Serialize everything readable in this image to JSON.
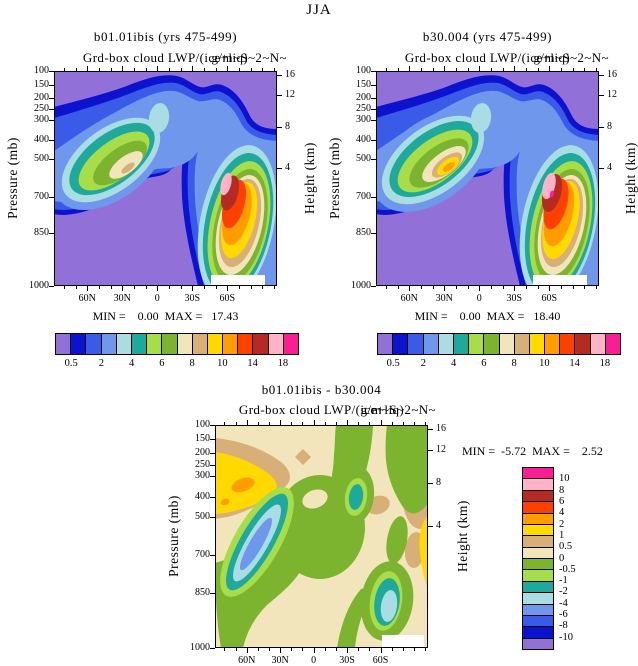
{
  "figure_title": "JJA",
  "panels": [
    {
      "title": "b01.01ibis (yrs 475-499)",
      "center_string": "Grd-box cloud LWP/(ice+liq)",
      "right_string": "g/m~S~2~N~",
      "minmax": "MIN =    0.00  MAX =   17.43"
    },
    {
      "title": "b30.004 (yrs 475-499)",
      "center_string": "Grd-box cloud LWP/(ice+liq)",
      "right_string": "g/m~S~2~N~",
      "minmax": "MIN =    0.00  MAX =   18.40"
    },
    {
      "title": "b01.01ibis - b30.004",
      "center_string": "Grd-box cloud LWP/(ice+liq)",
      "right_string": "g/m~S~2~N~",
      "minmax": "MIN =  -5.72  MAX =    2.52"
    }
  ],
  "axes": {
    "pressure_label": "Pressure (mb)",
    "height_label": "Height (km)",
    "pressure_ticks": [
      "100",
      "150",
      "200",
      "250",
      "300",
      "400",
      "500",
      "700",
      "850",
      "1000"
    ],
    "height_ticks": [
      "16",
      "12",
      "8",
      "4"
    ],
    "lat_ticks": [
      "60N",
      "30N",
      "0",
      "30S",
      "60S"
    ]
  },
  "colorbars": {
    "top_labels": [
      "0.5",
      "2",
      "4",
      "6",
      "8",
      "10",
      "14",
      "18"
    ],
    "diff_labels": [
      "10",
      "8",
      "6",
      "4",
      "2",
      "1",
      "0.5",
      "0",
      "-0.5",
      "-1",
      "-2",
      "-4",
      "-6",
      "-8",
      "-10"
    ]
  },
  "palette": {
    "order": [
      "purple",
      "darkblue",
      "royal",
      "cornflower",
      "palecyan",
      "teal",
      "lightgreen",
      "olive",
      "paletan",
      "tan",
      "yellow",
      "orange",
      "redorange",
      "darkred",
      "pink",
      "magenta"
    ],
    "map": {
      "purple": "#9170d8",
      "darkblue": "#0d12cf",
      "royal": "#3a5ae8",
      "cornflower": "#6f97ec",
      "palecyan": "#aadce4",
      "teal": "#1fa89c",
      "lightgreen": "#a7dd49",
      "olive": "#7cb32f",
      "paletan": "#f3e5bb",
      "tan": "#d7af77",
      "yellow": "#ffd900",
      "orange": "#ff9d00",
      "redorange": "#fb4000",
      "darkred": "#b62a24",
      "pink": "#ffb3c8",
      "magenta": "#fb1d96",
      "missing": "#ffffff"
    }
  },
  "chart_data": {
    "type": "filled-contour-cross-section",
    "season": "JJA",
    "variable": "Grd-box cloud LWP/(ice+liq)",
    "units_string": "g/m~S~2~N~",
    "x_axis": {
      "ticks": [
        "60N",
        "30N",
        "0",
        "30S",
        "60S"
      ],
      "orientation": "90N at left to 90S at right",
      "minor_tick_interval_deg": 10
    },
    "y_axis_left": {
      "label": "Pressure (mb)",
      "ticks": [
        100,
        150,
        200,
        250,
        300,
        400,
        500,
        700,
        850,
        1000
      ]
    },
    "y_axis_right": {
      "label": "Height (km)",
      "ticks": [
        16,
        12,
        8,
        4
      ]
    },
    "panels": [
      {
        "name": "b01.01ibis (yrs 475-499)",
        "min": 0.0,
        "max": 17.43,
        "contour_levels": [
          0.5,
          1,
          2,
          3,
          4,
          5,
          6,
          7,
          8,
          9,
          10,
          12,
          14,
          16,
          18
        ],
        "labeled_levels": [
          0.5,
          2,
          4,
          6,
          8,
          10,
          14,
          18
        ],
        "features": [
          "NH midlatitude cloud LWP maximum 8-9 g/m2 near 40-55N at 400-500 mb (pale-tan core)",
          "SH storm-track maximum 16-18 g/m2 near 50-60S at 500-600 mb (pink core)",
          "equatorial secondary maximum 3-4 g/m2 near 250-350 mb (pale-cyan spot)",
          "background < 0.5 g/m2 (purple), arch of 0.5-3 g/m2 spanning tropics aloft",
          "white missing-data strip near surface 60-85S"
        ]
      },
      {
        "name": "b30.004 (yrs 475-499)",
        "min": 0.0,
        "max": 18.4,
        "contour_levels": [
          0.5,
          1,
          2,
          3,
          4,
          5,
          6,
          7,
          8,
          9,
          10,
          12,
          14,
          16,
          18
        ],
        "labeled_levels": [
          0.5,
          2,
          4,
          6,
          8,
          10,
          14,
          18
        ],
        "features": [
          "NH midlatitude maximum 10-12 g/m2 near 45N at 450-500 mb (orange core in yellow)",
          "SH storm-track maximum >18 g/m2 near 55S at 550-600 mb (magenta speck in pink core)",
          "equatorial secondary maximum 3-4 g/m2 near 300 mb",
          "white missing-data strip near surface 60-85S"
        ]
      },
      {
        "name": "b01.01ibis - b30.004",
        "min": -5.72,
        "max": 2.52,
        "contour_levels": [
          -10,
          -8,
          -6,
          -4,
          -2,
          -1,
          -0.5,
          0,
          0.5,
          1,
          2,
          4,
          6,
          8,
          10
        ],
        "features": [
          "positive difference 1-4 g/m2 over 60-90N at 250-500 mb (yellow with small orange spots, max 2.52)",
          "negative core -6 to -4 g/m2 (periwinkle) near 55-65N sloping from 400 to 650 mb (min -5.72)",
          "negative -2 to -1 g/m2 pocket near 30S at 300-400 mb",
          "negative -4 to -2 g/m2 near 55-70S at 700-950 mb",
          "positive 1-2 g/m2 sliver along far SH edge 500-700 mb",
          "near-zero (-0.5 to 0, olive green) over much of tropics and high latitudes; background 0 to 0.5 (pale tan)"
        ]
      }
    ]
  }
}
